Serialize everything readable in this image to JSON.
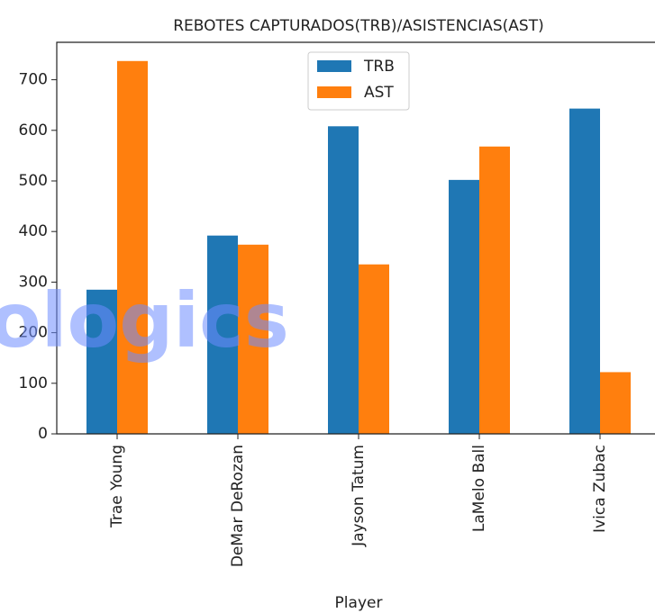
{
  "chart_data": {
    "type": "bar",
    "title": "REBOTES CAPTURADOS(TRB)/ASISTENCIAS(AST)",
    "x_label": "Player",
    "categories": [
      "Trae Young",
      "DeMar DeRozan",
      "Jayson Tatum",
      "LaMelo Ball",
      "Ivica Zubac"
    ],
    "series": [
      {
        "name": "TRB",
        "color": "#1f77b4",
        "values": [
          285,
          392,
          608,
          502,
          643
        ]
      },
      {
        "name": "AST",
        "color": "#ff7f0e",
        "values": [
          737,
          374,
          335,
          568,
          122
        ]
      }
    ],
    "ylim": [
      0,
      774
    ],
    "yticks": [
      0,
      100,
      200,
      300,
      400,
      500,
      600,
      700
    ],
    "legend": "upper center",
    "watermark": "ologics"
  }
}
